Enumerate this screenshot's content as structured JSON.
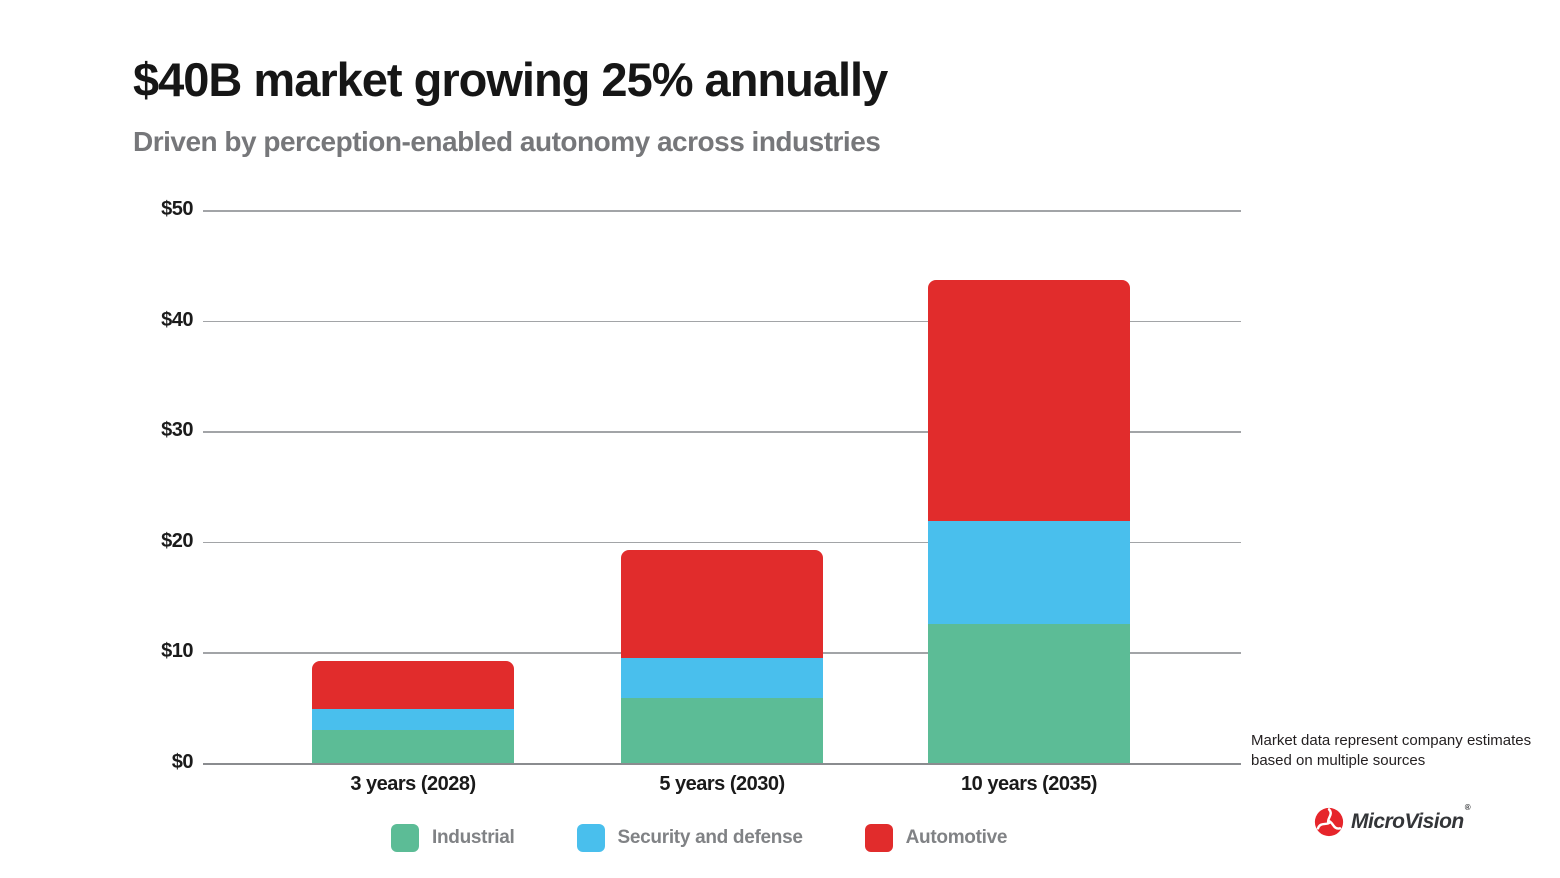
{
  "title": "$40B market growing 25% annually",
  "subtitle": "Driven by perception-enabled autonomy across industries",
  "footnote": {
    "line1": "Market data represent company estimates",
    "line2": "based on multiple sources"
  },
  "logo": {
    "text": "MicroVision",
    "reg": "®",
    "icon": "microvision-pinwheel-icon"
  },
  "colors": {
    "industrial": "#5CBC96",
    "security": "#49BFED",
    "automotive": "#E12C2C",
    "grid": "#A2A4A7",
    "axis": "#8A8C8F",
    "title_text": "#161616",
    "subtitle_text": "#76777A",
    "legend_label": "#808285",
    "footnote_text": "#231F20",
    "logo_red": "#E6252B"
  },
  "chart_data": {
    "type": "bar",
    "stacked": true,
    "title": "$40B market growing 25% annually",
    "subtitle": "Driven by perception-enabled autonomy across industries",
    "categories": [
      "3 years (2028)",
      "5 years (2030)",
      "10 years (2035)"
    ],
    "series": [
      {
        "name": "Industrial",
        "color_key": "industrial",
        "values": [
          3.0,
          5.9,
          12.6
        ]
      },
      {
        "name": "Security and defense",
        "color_key": "security",
        "values": [
          1.9,
          3.6,
          9.3
        ]
      },
      {
        "name": "Automotive",
        "color_key": "automotive",
        "values": [
          4.3,
          9.8,
          21.8
        ]
      }
    ],
    "estimated_totals": [
      9.2,
      19.3,
      43.7
    ],
    "unit": "billions USD",
    "ylim": [
      0,
      50
    ],
    "yticks": [
      "$0",
      "$10",
      "$20",
      "$30",
      "$40",
      "$50"
    ],
    "ytick_values": [
      0,
      10,
      20,
      30,
      40,
      50
    ],
    "xlabel": "",
    "ylabel": "",
    "grid": true,
    "legend_position": "bottom"
  }
}
